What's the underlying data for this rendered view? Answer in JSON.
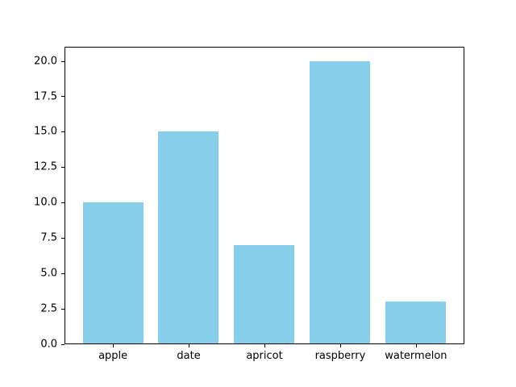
{
  "chart_data": {
    "type": "bar",
    "categories": [
      "apple",
      "date",
      "apricot",
      "raspberry",
      "watermelon"
    ],
    "values": [
      10,
      15,
      7,
      20,
      3
    ],
    "title": "",
    "xlabel": "",
    "ylabel": "",
    "ylim": [
      0,
      21
    ],
    "yticks": [
      0.0,
      2.5,
      5.0,
      7.5,
      10.0,
      12.5,
      15.0,
      17.5,
      20.0
    ],
    "ytick_labels": [
      "0.0",
      "2.5",
      "5.0",
      "7.5",
      "10.0",
      "12.5",
      "15.0",
      "17.5",
      "20.0"
    ],
    "bar_color": "#87ceeb",
    "bar_width_fraction": 0.8,
    "grid": false,
    "legend_position": "none"
  }
}
